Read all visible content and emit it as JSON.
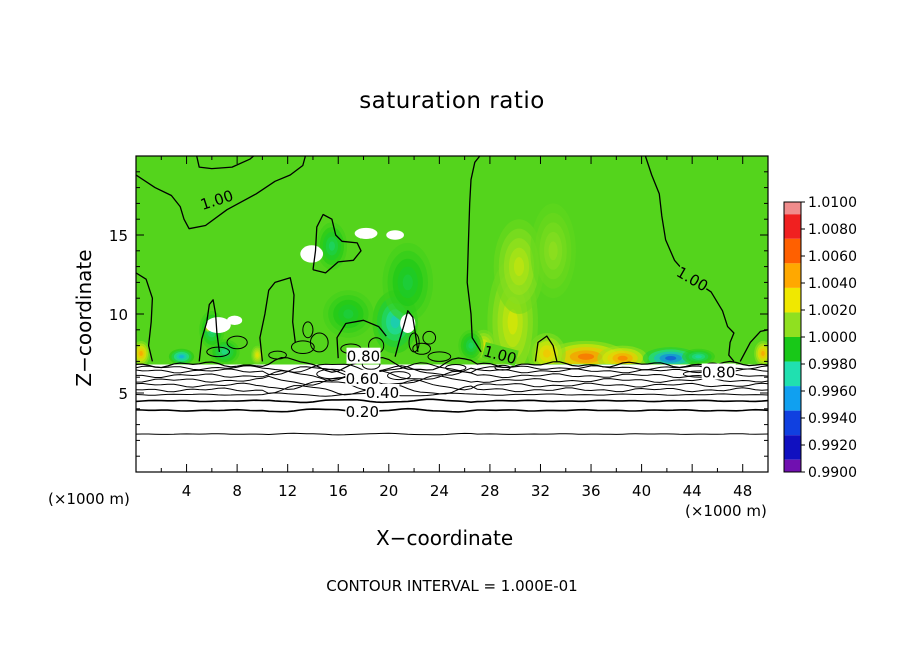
{
  "chart_data": {
    "type": "heatmap",
    "title": "saturation ratio",
    "xlabel": "X−coordinate",
    "ylabel": "Z−coordinate",
    "x_unit": "(×1000 m)",
    "y_unit": "(×1000 m)",
    "xlim": [
      0,
      50
    ],
    "ylim": [
      0,
      20
    ],
    "x_ticks": [
      4,
      8,
      12,
      16,
      20,
      24,
      28,
      32,
      36,
      40,
      44,
      48
    ],
    "y_ticks": [
      5,
      10,
      15
    ],
    "colorbar": {
      "min": 0.99,
      "max": 1.01,
      "labels": [
        "1.0100",
        "1.0080",
        "1.0060",
        "1.0040",
        "1.0020",
        "1.0000",
        "0.9980",
        "0.9960",
        "0.9940",
        "0.9920",
        "0.9900"
      ],
      "colors": [
        "#f08c8c",
        "#f02020",
        "#ff6000",
        "#ffa800",
        "#f0e800",
        "#90e020",
        "#18c818",
        "#20e0b0",
        "#10a0f0",
        "#1040e0",
        "#1010c0",
        "#7010b0"
      ]
    },
    "contour_interval": "CONTOUR INTERVAL = 1.000E-01",
    "contour_labels": [
      {
        "text": "1.00",
        "x": 6.4,
        "z": 17.2,
        "rotate": -18
      },
      {
        "text": "1.00",
        "x": 44.0,
        "z": 12.2,
        "rotate": 30
      },
      {
        "text": "1.00",
        "x": 28.8,
        "z": 7.4,
        "rotate": 15
      },
      {
        "text": "0.80",
        "x": 18.0,
        "z": 7.3,
        "rotate": 0
      },
      {
        "text": "0.60",
        "x": 17.9,
        "z": 5.9,
        "rotate": 0
      },
      {
        "text": "0.40",
        "x": 19.5,
        "z": 5.0,
        "rotate": 0
      },
      {
        "text": "0.20",
        "x": 17.9,
        "z": 3.8,
        "rotate": 0
      },
      {
        "text": "0.80",
        "x": 46.1,
        "z": 6.3,
        "rotate": 0
      }
    ],
    "dry_layer_top_z": 6.8,
    "contour_levels_below": [
      6.6,
      6.4,
      6.1,
      5.8,
      5.5,
      5.2,
      4.9,
      4.5,
      3.9,
      2.4
    ],
    "anomalies": [
      {
        "x": 35.6,
        "z": 7.3,
        "value": 1.0065,
        "sx": 3.2,
        "sz": 1.0
      },
      {
        "x": 38.5,
        "z": 7.2,
        "value": 1.006,
        "sx": 2.0,
        "sz": 0.8
      },
      {
        "x": 32.5,
        "z": 7.5,
        "value": 1.004,
        "sx": 1.5,
        "sz": 1.3
      },
      {
        "x": 29.8,
        "z": 9.5,
        "value": 1.0025,
        "sx": 2.0,
        "sz": 4.0
      },
      {
        "x": 30.3,
        "z": 13.0,
        "value": 1.002,
        "sx": 2.0,
        "sz": 3.0
      },
      {
        "x": 27.5,
        "z": 8.0,
        "value": 1.003,
        "sx": 1.0,
        "sz": 1.0
      },
      {
        "x": 33.0,
        "z": 14.0,
        "value": 1.001,
        "sx": 1.8,
        "sz": 3.0
      },
      {
        "x": 42.3,
        "z": 7.2,
        "value": 0.9935,
        "sx": 2.2,
        "sz": 0.7
      },
      {
        "x": 44.5,
        "z": 7.3,
        "value": 0.997,
        "sx": 1.3,
        "sz": 0.5
      },
      {
        "x": 0.4,
        "z": 7.5,
        "value": 1.005,
        "sx": 0.7,
        "sz": 0.8
      },
      {
        "x": 49.6,
        "z": 7.5,
        "value": 1.005,
        "sx": 0.7,
        "sz": 0.8
      },
      {
        "x": 9.6,
        "z": 7.4,
        "value": 1.003,
        "sx": 0.5,
        "sz": 0.6
      },
      {
        "x": 3.6,
        "z": 7.3,
        "value": 0.9955,
        "sx": 1.0,
        "sz": 0.5
      },
      {
        "x": 7.0,
        "z": 7.6,
        "value": 0.9975,
        "sx": 1.2,
        "sz": 0.8
      },
      {
        "x": 20.5,
        "z": 9.5,
        "value": 0.9965,
        "sx": 1.8,
        "sz": 2.0
      },
      {
        "x": 21.5,
        "z": 12.0,
        "value": 0.9985,
        "sx": 2.0,
        "sz": 2.5
      },
      {
        "x": 26.5,
        "z": 8.0,
        "value": 0.998,
        "sx": 1.0,
        "sz": 1.0
      },
      {
        "x": 15.5,
        "z": 14.3,
        "value": 0.998,
        "sx": 1.2,
        "sz": 1.5
      },
      {
        "x": 6.0,
        "z": 9.0,
        "value": 0.9975,
        "sx": 1.0,
        "sz": 1.2
      },
      {
        "x": 16.8,
        "z": 10.0,
        "value": 0.9985,
        "sx": 2.0,
        "sz": 1.5
      },
      {
        "x": 5.7,
        "z": 9.2,
        "value": 1.006,
        "sx": 0.25,
        "sz": 0.35
      }
    ],
    "unsaturated_patches": [
      {
        "x": 13.9,
        "z": 13.8,
        "rx": 0.9,
        "rz": 0.55
      },
      {
        "x": 18.2,
        "z": 15.1,
        "rx": 0.9,
        "rz": 0.35
      },
      {
        "x": 20.5,
        "z": 15.0,
        "rx": 0.7,
        "rz": 0.3
      },
      {
        "x": 6.5,
        "z": 9.3,
        "rx": 1.0,
        "rz": 0.5
      },
      {
        "x": 7.8,
        "z": 9.6,
        "rx": 0.6,
        "rz": 0.3
      },
      {
        "x": 21.5,
        "z": 9.4,
        "rx": 0.6,
        "rz": 0.6
      }
    ]
  }
}
